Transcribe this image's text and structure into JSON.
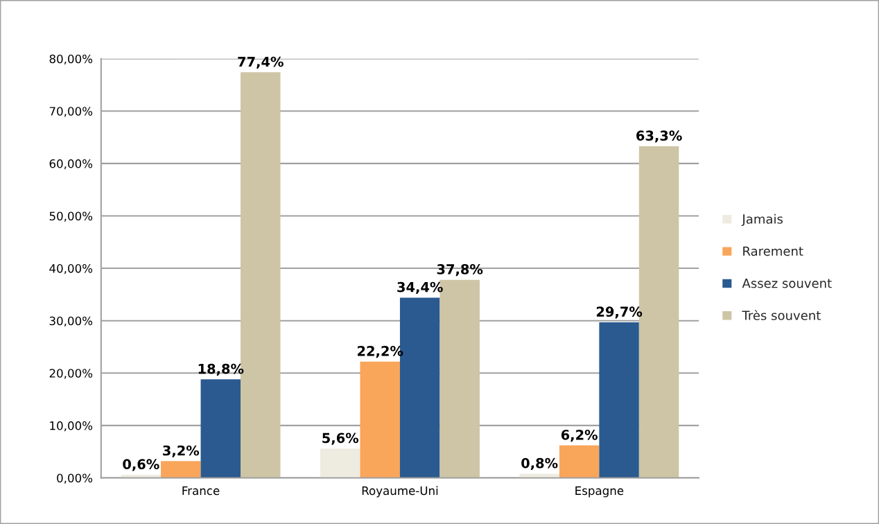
{
  "chart_data": {
    "type": "bar",
    "categories": [
      "France",
      "Royaume-Uni",
      "Espagne"
    ],
    "series": [
      {
        "name": "Jamais",
        "color": "#eeece1",
        "values": [
          0.6,
          5.6,
          0.8
        ],
        "value_labels": [
          "0,6%",
          "5,6%",
          "0,8%"
        ]
      },
      {
        "name": "Rarement",
        "color": "#f9a55a",
        "values": [
          3.2,
          22.2,
          6.2
        ],
        "value_labels": [
          "3,2%",
          "22,2%",
          "6,2%"
        ]
      },
      {
        "name": "Assez souvent",
        "color": "#2a5a8f",
        "values": [
          18.8,
          34.4,
          29.7
        ],
        "value_labels": [
          "18,8%",
          "34,4%",
          "29,7%"
        ]
      },
      {
        "name": "Très souvent",
        "color": "#cdc5a5",
        "values": [
          77.4,
          37.8,
          63.3
        ],
        "value_labels": [
          "77,4%",
          "37,8%",
          "63,3%"
        ]
      }
    ],
    "ylim": [
      0,
      80
    ],
    "yticks": [
      {
        "value": 0,
        "label": "0,00%"
      },
      {
        "value": 10,
        "label": "10,00%"
      },
      {
        "value": 20,
        "label": "20,00%"
      },
      {
        "value": 30,
        "label": "30,00%"
      },
      {
        "value": 40,
        "label": "40,00%"
      },
      {
        "value": 50,
        "label": "50,00%"
      },
      {
        "value": 60,
        "label": "60,00%"
      },
      {
        "value": 70,
        "label": "70,00%"
      },
      {
        "value": 80,
        "label": "80,00%"
      }
    ],
    "grid": "y",
    "legend": "right"
  }
}
